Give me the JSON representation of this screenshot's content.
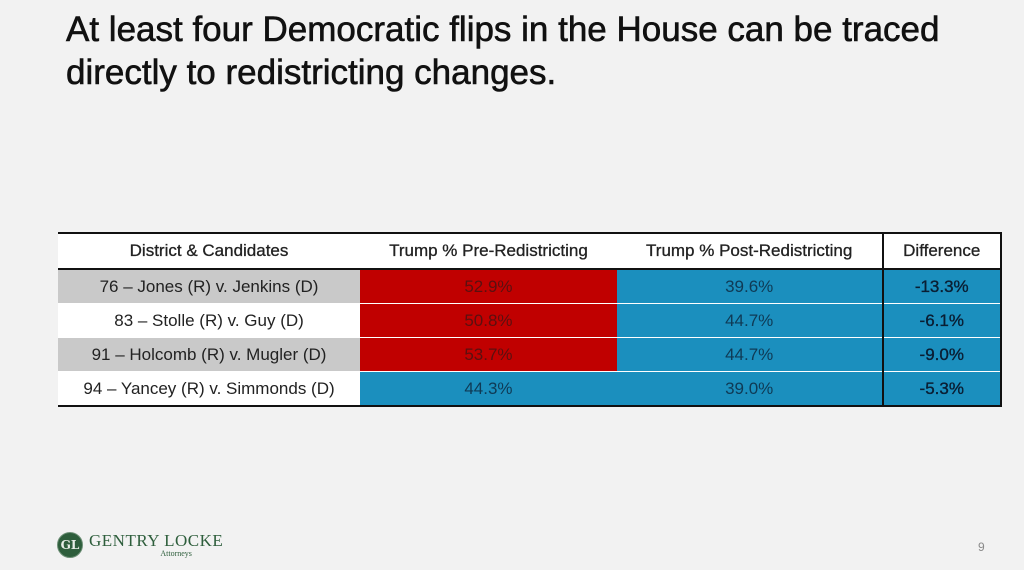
{
  "slide": {
    "title": "At least four Democratic flips in the House can be traced directly to redistricting changes.",
    "page_number": "9"
  },
  "table": {
    "headers": {
      "district": "District & Candidates",
      "pre": "Trump % Pre-Redistricting",
      "post": "Trump % Post-Redistricting",
      "diff": "Difference"
    },
    "rows": [
      {
        "district": "76 – Jones (R) v. Jenkins (D)",
        "pre": "52.9%",
        "post": "39.6%",
        "diff": "-13.3%"
      },
      {
        "district": "83 – Stolle (R) v. Guy (D)",
        "pre": "50.8%",
        "post": "44.7%",
        "diff": "-6.1%"
      },
      {
        "district": "91 – Holcomb (R) v. Mugler (D)",
        "pre": "53.7%",
        "post": "44.7%",
        "diff": "-9.0%"
      },
      {
        "district": "94 – Yancey (R) v. Simmonds (D)",
        "pre": "44.3%",
        "post": "39.0%",
        "diff": "-5.3%"
      }
    ]
  },
  "colors": {
    "republican": "#c00000",
    "democratic": "#1b8fbe",
    "brand_green": "#2e5e3c"
  },
  "logo": {
    "name": "GENTRY LOCKE",
    "subtitle": "Attorneys",
    "mark": "GL"
  }
}
